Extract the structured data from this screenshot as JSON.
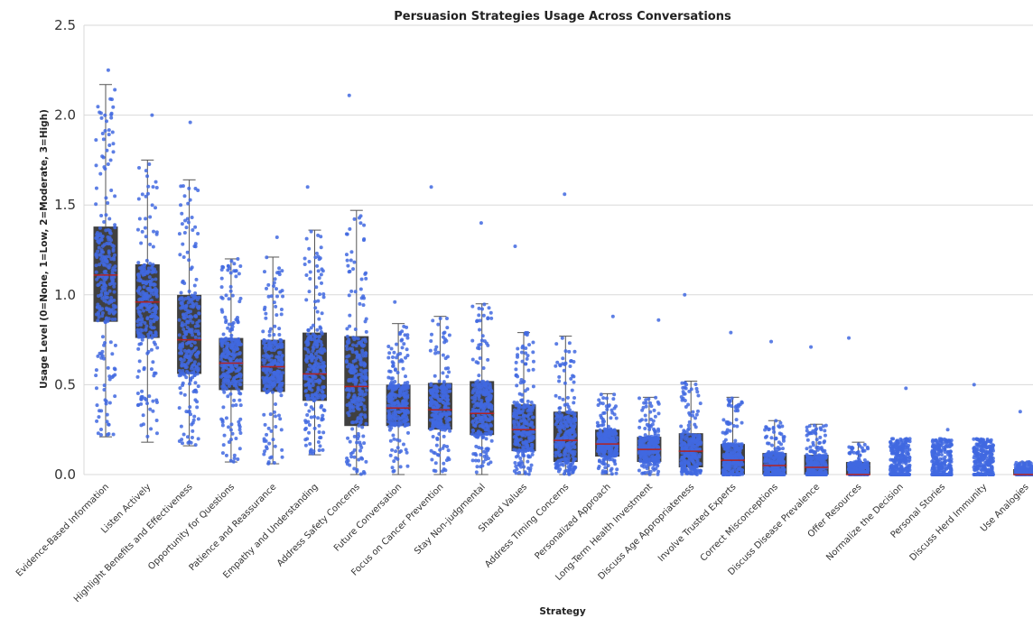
{
  "chart_data": {
    "type": "box",
    "title": "Persuasion Strategies Usage Across Conversations",
    "xlabel": "Strategy",
    "ylabel": "Usage Level (0=None, 1=Low, 2=Moderate, 3=High)",
    "ylim": [
      0,
      2.5
    ],
    "yticks": [
      "0.0",
      "0.5",
      "1.0",
      "1.5",
      "2.0",
      "2.5"
    ],
    "grid": true,
    "colors": {
      "points": "#4169e1",
      "box": "#404040",
      "median": "#b22222",
      "mean": "#111111"
    },
    "categories": [
      "Evidence-Based Information",
      "Listen Actively",
      "Highlight Benefits and Effectiveness",
      "Opportunity for Questions",
      "Patience and Reassurance",
      "Empathy and Understanding",
      "Address Safety Concerns",
      "Future Conversation",
      "Focus on Cancer Prevention",
      "Stay Non-judgmental",
      "Shared Values",
      "Address Timing Concerns",
      "Personalized Approach",
      "Long-Term Health Investment",
      "Discuss Age Appropriateness",
      "Involve Trusted Experts",
      "Correct Misconceptions",
      "Discuss Disease Prevalence",
      "Offer Resources",
      "Normalize the Decision",
      "Personal Stories",
      "Discuss Herd Immunity",
      "Use Analogies"
    ],
    "boxes": [
      {
        "q1": 0.85,
        "median": 1.11,
        "q3": 1.38,
        "whisker_low": 0.21,
        "whisker_high": 2.17,
        "max_point": 2.25
      },
      {
        "q1": 0.76,
        "median": 0.96,
        "q3": 1.17,
        "whisker_low": 0.18,
        "whisker_high": 1.75,
        "max_point": 2.0
      },
      {
        "q1": 0.56,
        "median": 0.75,
        "q3": 1.0,
        "whisker_low": 0.16,
        "whisker_high": 1.64,
        "max_point": 1.96
      },
      {
        "q1": 0.47,
        "median": 0.62,
        "q3": 0.76,
        "whisker_low": 0.07,
        "whisker_high": 1.2,
        "max_point": 1.2
      },
      {
        "q1": 0.46,
        "median": 0.6,
        "q3": 0.75,
        "whisker_low": 0.06,
        "whisker_high": 1.21,
        "max_point": 1.32
      },
      {
        "q1": 0.41,
        "median": 0.56,
        "q3": 0.79,
        "whisker_low": 0.11,
        "whisker_high": 1.36,
        "max_point": 1.6
      },
      {
        "q1": 0.27,
        "median": 0.49,
        "q3": 0.77,
        "whisker_low": 0.0,
        "whisker_high": 1.47,
        "max_point": 2.11
      },
      {
        "q1": 0.27,
        "median": 0.37,
        "q3": 0.5,
        "whisker_low": 0.0,
        "whisker_high": 0.84,
        "max_point": 0.96
      },
      {
        "q1": 0.25,
        "median": 0.36,
        "q3": 0.51,
        "whisker_low": 0.0,
        "whisker_high": 0.88,
        "max_point": 1.6
      },
      {
        "q1": 0.22,
        "median": 0.34,
        "q3": 0.52,
        "whisker_low": 0.0,
        "whisker_high": 0.95,
        "max_point": 1.4
      },
      {
        "q1": 0.13,
        "median": 0.25,
        "q3": 0.39,
        "whisker_low": 0.0,
        "whisker_high": 0.79,
        "max_point": 1.27
      },
      {
        "q1": 0.07,
        "median": 0.19,
        "q3": 0.35,
        "whisker_low": 0.0,
        "whisker_high": 0.77,
        "max_point": 1.56
      },
      {
        "q1": 0.1,
        "median": 0.17,
        "q3": 0.25,
        "whisker_low": 0.0,
        "whisker_high": 0.45,
        "max_point": 0.88
      },
      {
        "q1": 0.07,
        "median": 0.14,
        "q3": 0.21,
        "whisker_low": 0.0,
        "whisker_high": 0.43,
        "max_point": 0.86
      },
      {
        "q1": 0.04,
        "median": 0.13,
        "q3": 0.23,
        "whisker_low": 0.0,
        "whisker_high": 0.52,
        "max_point": 1.0
      },
      {
        "q1": 0.0,
        "median": 0.08,
        "q3": 0.17,
        "whisker_low": 0.0,
        "whisker_high": 0.43,
        "max_point": 0.79
      },
      {
        "q1": 0.0,
        "median": 0.05,
        "q3": 0.12,
        "whisker_low": 0.0,
        "whisker_high": 0.3,
        "max_point": 0.74
      },
      {
        "q1": 0.0,
        "median": 0.04,
        "q3": 0.11,
        "whisker_low": 0.0,
        "whisker_high": 0.28,
        "max_point": 0.71
      },
      {
        "q1": 0.0,
        "median": 0.0,
        "q3": 0.07,
        "whisker_low": 0.0,
        "whisker_high": 0.18,
        "max_point": 0.76
      },
      {
        "q1": 0.0,
        "median": 0.0,
        "q3": 0.0,
        "whisker_low": 0.0,
        "whisker_high": 0.0,
        "max_point": 0.48
      },
      {
        "q1": 0.0,
        "median": 0.0,
        "q3": 0.0,
        "whisker_low": 0.0,
        "whisker_high": 0.0,
        "max_point": 0.25
      },
      {
        "q1": 0.0,
        "median": 0.0,
        "q3": 0.0,
        "whisker_low": 0.0,
        "whisker_high": 0.0,
        "max_point": 0.5
      },
      {
        "q1": 0.0,
        "median": 0.0,
        "q3": 0.03,
        "whisker_low": 0.0,
        "whisker_high": 0.07,
        "max_point": 0.35
      }
    ]
  }
}
